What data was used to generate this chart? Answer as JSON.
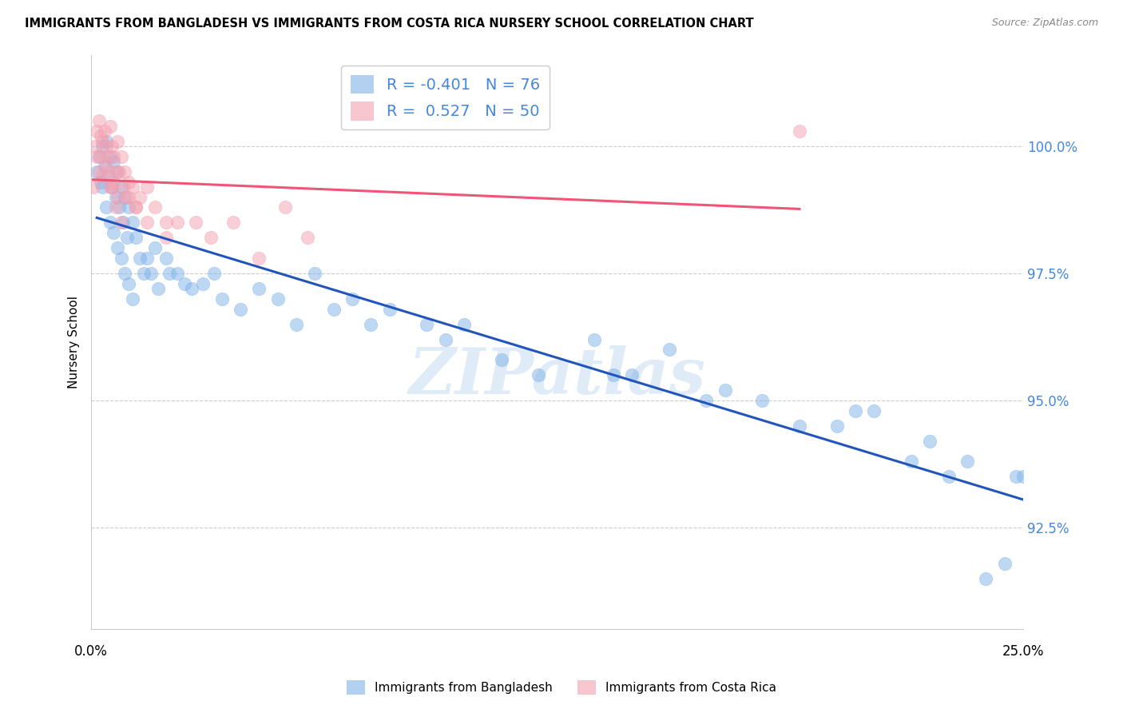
{
  "title": "IMMIGRANTS FROM BANGLADESH VS IMMIGRANTS FROM COSTA RICA NURSERY SCHOOL CORRELATION CHART",
  "source": "Source: ZipAtlas.com",
  "ylabel": "Nursery School",
  "ytick_labels": [
    "92.5%",
    "95.0%",
    "97.5%",
    "100.0%"
  ],
  "ytick_values": [
    92.5,
    95.0,
    97.5,
    100.0
  ],
  "xlim": [
    0.0,
    25.0
  ],
  "ylim": [
    90.5,
    101.8
  ],
  "legend_blue_r": "-0.401",
  "legend_blue_n": "76",
  "legend_pink_r": "0.527",
  "legend_pink_n": "50",
  "blue_color": "#7FB3E8",
  "pink_color": "#F4A0B0",
  "blue_line_color": "#2255BB",
  "pink_line_color": "#EE5577",
  "watermark": "ZIPatlas",
  "blue_x": [
    0.15,
    0.2,
    0.25,
    0.3,
    0.3,
    0.35,
    0.4,
    0.4,
    0.45,
    0.5,
    0.5,
    0.55,
    0.6,
    0.6,
    0.65,
    0.7,
    0.7,
    0.75,
    0.8,
    0.8,
    0.85,
    0.9,
    0.9,
    0.95,
    1.0,
    1.0,
    1.1,
    1.1,
    1.2,
    1.3,
    1.4,
    1.5,
    1.6,
    1.7,
    1.8,
    2.0,
    2.1,
    2.3,
    2.5,
    2.7,
    3.0,
    3.3,
    3.5,
    4.0,
    4.5,
    5.0,
    5.5,
    6.0,
    6.5,
    7.0,
    7.5,
    8.0,
    9.0,
    9.5,
    10.0,
    11.0,
    12.0,
    13.5,
    14.0,
    15.5,
    17.0,
    18.0,
    20.0,
    21.0,
    22.0,
    23.0,
    23.5,
    24.0,
    24.5,
    24.8,
    20.5,
    22.5,
    14.5,
    16.5,
    19.0,
    25.0
  ],
  "blue_y": [
    99.5,
    99.8,
    99.3,
    100.0,
    99.2,
    99.6,
    100.1,
    98.8,
    99.4,
    99.8,
    98.5,
    99.2,
    99.7,
    98.3,
    99.0,
    99.5,
    98.0,
    98.8,
    99.2,
    97.8,
    98.5,
    99.0,
    97.5,
    98.2,
    98.8,
    97.3,
    98.5,
    97.0,
    98.2,
    97.8,
    97.5,
    97.8,
    97.5,
    98.0,
    97.2,
    97.8,
    97.5,
    97.5,
    97.3,
    97.2,
    97.3,
    97.5,
    97.0,
    96.8,
    97.2,
    97.0,
    96.5,
    97.5,
    96.8,
    97.0,
    96.5,
    96.8,
    96.5,
    96.2,
    96.5,
    95.8,
    95.5,
    96.2,
    95.5,
    96.0,
    95.2,
    95.0,
    94.5,
    94.8,
    93.8,
    93.5,
    93.8,
    91.5,
    91.8,
    93.5,
    94.8,
    94.2,
    95.5,
    95.0,
    94.5,
    93.5
  ],
  "pink_x": [
    0.05,
    0.1,
    0.15,
    0.15,
    0.2,
    0.2,
    0.25,
    0.25,
    0.3,
    0.3,
    0.35,
    0.4,
    0.4,
    0.45,
    0.5,
    0.5,
    0.55,
    0.6,
    0.6,
    0.65,
    0.7,
    0.7,
    0.75,
    0.8,
    0.85,
    0.9,
    0.95,
    1.0,
    1.1,
    1.2,
    1.3,
    1.5,
    1.7,
    2.0,
    2.3,
    2.8,
    3.2,
    3.8,
    4.5,
    5.2,
    5.8,
    0.45,
    0.55,
    0.65,
    0.8,
    1.0,
    1.2,
    1.5,
    2.0,
    19.0
  ],
  "pink_y": [
    99.2,
    100.0,
    99.8,
    100.3,
    100.5,
    99.5,
    100.2,
    99.8,
    100.1,
    99.4,
    100.3,
    100.0,
    99.6,
    99.8,
    100.4,
    99.2,
    100.0,
    99.8,
    99.3,
    99.5,
    100.1,
    99.0,
    99.5,
    99.8,
    99.2,
    99.5,
    99.0,
    99.3,
    99.2,
    98.8,
    99.0,
    98.5,
    98.8,
    98.2,
    98.5,
    98.5,
    98.2,
    98.5,
    97.8,
    98.8,
    98.2,
    99.5,
    99.2,
    98.8,
    98.5,
    99.0,
    98.8,
    99.2,
    98.5,
    100.3
  ]
}
